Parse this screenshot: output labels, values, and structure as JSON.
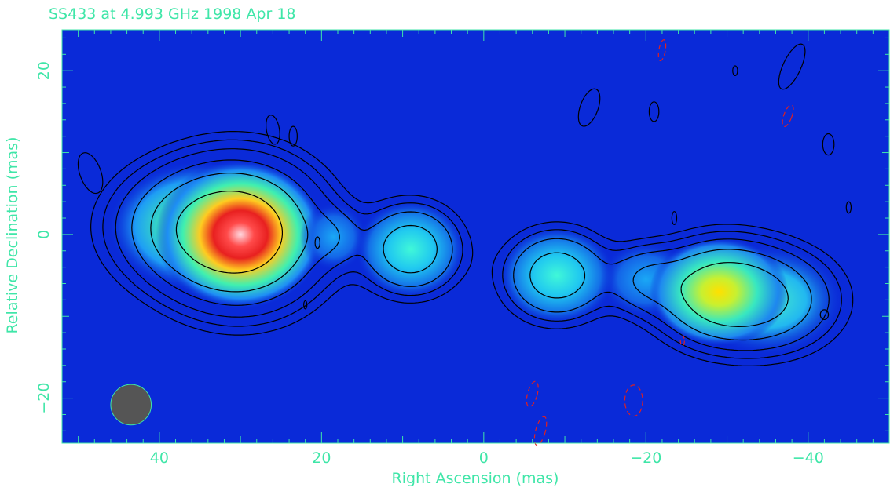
{
  "chart_data": {
    "type": "heatmap",
    "title": "SS433 at 4.993 GHz 1998 Apr 18",
    "xlabel": "Right Ascension  (mas)",
    "ylabel": "Relative Declination  (mas)",
    "xlim": [
      52,
      -50
    ],
    "ylim": [
      -25.5,
      25
    ],
    "x_ticks": [
      40,
      20,
      0,
      -20,
      -40
    ],
    "x_tick_labels": [
      "40",
      "20",
      "0",
      "−20",
      "−40"
    ],
    "y_ticks": [
      20,
      0,
      -20
    ],
    "y_tick_labels": [
      "20",
      "0",
      "−20"
    ],
    "grid": false,
    "colors": {
      "background": "#0a2ad8",
      "axes": "#3fe6a8",
      "contour_positive": "#000000",
      "contour_negative": "#e02020",
      "beam": "#555555"
    },
    "components": [
      {
        "name": "core",
        "x": 30,
        "y": 0,
        "sx": 5.5,
        "sy": 4.8,
        "peak": 1.0
      },
      {
        "name": "east-jet",
        "x": 35,
        "y": 1,
        "sx": 6,
        "sy": 4.2,
        "peak": 0.45
      },
      {
        "name": "east-knot-small",
        "x": 18.5,
        "y": -0.3,
        "sx": 2.2,
        "sy": 2.2,
        "peak": 0.12
      },
      {
        "name": "east-knot",
        "x": 9,
        "y": -1.8,
        "sx": 3.6,
        "sy": 3.2,
        "peak": 0.33
      },
      {
        "name": "west-knot",
        "x": -9,
        "y": -5,
        "sx": 3.8,
        "sy": 3.2,
        "peak": 0.32
      },
      {
        "name": "west-bridge",
        "x": -20,
        "y": -5.5,
        "sx": 3,
        "sy": 2.5,
        "peak": 0.2
      },
      {
        "name": "west-hotspot",
        "x": -29,
        "y": -7,
        "sx": 4.5,
        "sy": 3.5,
        "peak": 0.52
      },
      {
        "name": "west-tail",
        "x": -35,
        "y": -8,
        "sx": 5,
        "sy": 3.6,
        "peak": 0.36
      }
    ],
    "contour_levels": [
      0.04,
      0.07,
      0.12,
      0.22,
      0.4,
      0.75
    ],
    "beam": {
      "x": 43.5,
      "y": -20.8,
      "diameter": 5
    }
  }
}
